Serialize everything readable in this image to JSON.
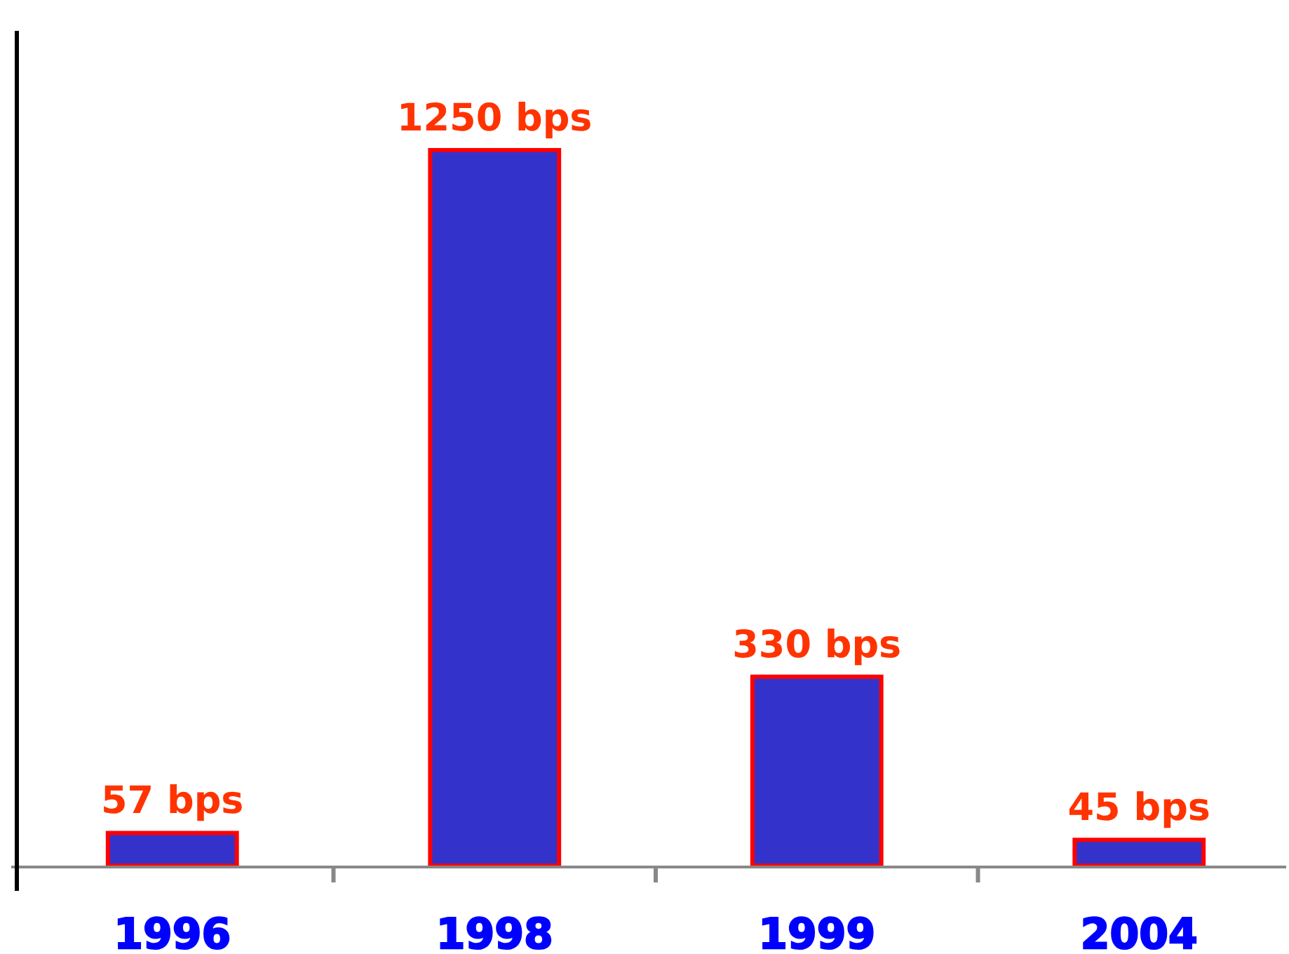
{
  "chart_data": {
    "type": "bar",
    "categories": [
      "1996",
      "1998",
      "1999",
      "2004"
    ],
    "values": [
      57,
      1250,
      330,
      45
    ],
    "value_labels": [
      "57 bps",
      "1250 bps",
      "330 bps",
      "45 bps"
    ],
    "color": "#3333cc",
    "grid": false
  }
}
